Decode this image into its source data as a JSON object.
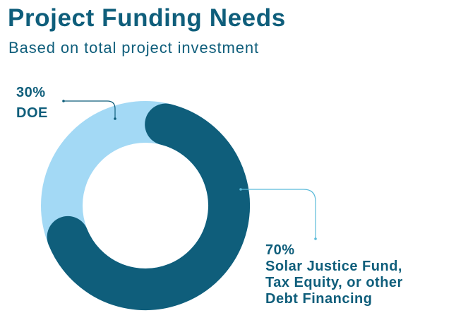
{
  "chart_data": {
    "type": "pie",
    "variant": "donut",
    "title": "Project Funding Needs",
    "subtitle": "Based on total project investment",
    "slices": [
      {
        "label": "DOE",
        "value": 30,
        "value_label": "30%",
        "color": "#a3d9f5"
      },
      {
        "label": "Solar Justice Fund, Tax Equity, or other Debt Financing",
        "label_lines": [
          "Solar Justice Fund,",
          "Tax Equity, or other",
          "Debt Financing"
        ],
        "value": 70,
        "value_label": "70%",
        "color": "#0f5e7b"
      }
    ],
    "colors": {
      "text": "#0f5e7b",
      "callout_doe": "#0f5e7b",
      "callout_other": "#5bbad9"
    }
  }
}
